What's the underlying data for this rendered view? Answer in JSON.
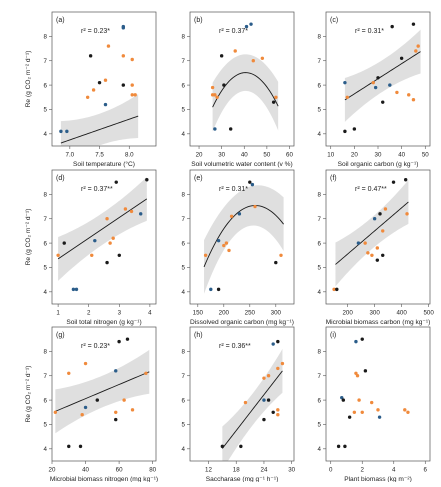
{
  "figure": {
    "colors": {
      "blue": "#2b5d8a",
      "orange": "#f08a3c",
      "black": "#1a1a1a",
      "band": "#d9d9d9"
    }
  },
  "chart_data": [
    {
      "id": "a",
      "panel_label": "(a)",
      "type": "scatter",
      "r2_label": "r² = 0.23*",
      "xlabel": "Soil temperature (°C)",
      "ylabel": "Re (g CO₂ m⁻² d⁻¹)",
      "xlim": [
        6.7,
        8.45
      ],
      "ylim": [
        3.5,
        9.0
      ],
      "xticks": [
        7.0,
        7.5,
        8.0
      ],
      "xticklabels": [
        "7.0",
        "7.5",
        "8.0"
      ],
      "yticks": [
        4,
        5,
        6,
        7,
        8
      ],
      "fit": {
        "kind": "linear",
        "x0": 6.85,
        "x1": 8.15,
        "coef": [
          -2.2,
          0.85
        ],
        "ci": [
          0.9,
          0.4,
          0.9
        ]
      },
      "points": [
        {
          "x": 7.3,
          "y": 5.5,
          "g": "orange"
        },
        {
          "x": 7.4,
          "y": 5.8,
          "g": "orange"
        },
        {
          "x": 7.6,
          "y": 6.2,
          "g": "orange"
        },
        {
          "x": 7.9,
          "y": 7.2,
          "g": "orange"
        },
        {
          "x": 8.05,
          "y": 7.05,
          "g": "orange"
        },
        {
          "x": 8.05,
          "y": 5.6,
          "g": "orange"
        },
        {
          "x": 8.1,
          "y": 5.6,
          "g": "orange"
        },
        {
          "x": 7.65,
          "y": 7.6,
          "g": "orange"
        },
        {
          "x": 8.05,
          "y": 6.0,
          "g": "orange"
        },
        {
          "x": 6.85,
          "y": 4.1,
          "g": "blue"
        },
        {
          "x": 6.95,
          "y": 4.1,
          "g": "blue"
        },
        {
          "x": 7.6,
          "y": 5.2,
          "g": "blue"
        },
        {
          "x": 7.9,
          "y": 8.35,
          "g": "blue"
        },
        {
          "x": 7.9,
          "y": 8.4,
          "g": "blue"
        },
        {
          "x": 7.35,
          "y": 7.2,
          "g": "black"
        },
        {
          "x": 7.5,
          "y": 6.1,
          "g": "black"
        },
        {
          "x": 7.9,
          "y": 6.0,
          "g": "black"
        }
      ]
    },
    {
      "id": "b",
      "panel_label": "(b)",
      "type": "scatter",
      "r2_label": "r² = 0.37*",
      "xlabel": "Soil volumetric water content  (v %)",
      "ylabel": "",
      "xlim": [
        16,
        62
      ],
      "ylim": [
        3.5,
        9.0
      ],
      "xticks": [
        20,
        30,
        40,
        50,
        60
      ],
      "xticklabels": [
        "20",
        "30",
        "40",
        "50",
        "60"
      ],
      "yticks": [
        4,
        5,
        6,
        7,
        8
      ],
      "fit": {
        "kind": "quadratic",
        "x0": 26,
        "x1": 55,
        "coef": [
          -4.45,
          0.54,
          -0.00665
        ],
        "ci": [
          1.0,
          0.5,
          1.0
        ]
      },
      "points": [
        {
          "x": 26,
          "y": 5.9,
          "g": "orange"
        },
        {
          "x": 26,
          "y": 5.6,
          "g": "orange"
        },
        {
          "x": 27,
          "y": 5.6,
          "g": "orange"
        },
        {
          "x": 28,
          "y": 5.5,
          "g": "orange"
        },
        {
          "x": 36,
          "y": 7.4,
          "g": "orange"
        },
        {
          "x": 44,
          "y": 7.0,
          "g": "orange"
        },
        {
          "x": 48,
          "y": 7.1,
          "g": "orange"
        },
        {
          "x": 54,
          "y": 5.5,
          "g": "orange"
        },
        {
          "x": 27,
          "y": 4.2,
          "g": "blue"
        },
        {
          "x": 41,
          "y": 8.4,
          "g": "blue"
        },
        {
          "x": 43,
          "y": 8.5,
          "g": "blue"
        },
        {
          "x": 30,
          "y": 7.2,
          "g": "black"
        },
        {
          "x": 31,
          "y": 6.0,
          "g": "black"
        },
        {
          "x": 34,
          "y": 4.2,
          "g": "black"
        },
        {
          "x": 53,
          "y": 5.3,
          "g": "black"
        }
      ]
    },
    {
      "id": "c",
      "panel_label": "(c)",
      "type": "scatter",
      "r2_label": "r² = 0.31*",
      "xlabel": "Soil organic carbon (g kg⁻¹)",
      "ylabel": "",
      "xlim": [
        8,
        52
      ],
      "ylim": [
        3.5,
        9.0
      ],
      "xticks": [
        10,
        20,
        30,
        40,
        50
      ],
      "xticklabels": [
        "10",
        "20",
        "30",
        "40",
        "50"
      ],
      "yticks": [
        4,
        5,
        6,
        7,
        8
      ],
      "fit": {
        "kind": "linear",
        "x0": 16,
        "x1": 48,
        "coef": [
          4.4,
          0.062
        ],
        "ci": [
          0.9,
          0.4,
          0.9
        ]
      },
      "points": [
        {
          "x": 17,
          "y": 5.5,
          "g": "orange"
        },
        {
          "x": 28,
          "y": 6.1,
          "g": "orange"
        },
        {
          "x": 38,
          "y": 5.7,
          "g": "orange"
        },
        {
          "x": 43,
          "y": 5.6,
          "g": "orange"
        },
        {
          "x": 45,
          "y": 5.4,
          "g": "orange"
        },
        {
          "x": 46,
          "y": 7.4,
          "g": "orange"
        },
        {
          "x": 47,
          "y": 7.6,
          "g": "orange"
        },
        {
          "x": 16,
          "y": 6.1,
          "g": "blue"
        },
        {
          "x": 29,
          "y": 5.9,
          "g": "blue"
        },
        {
          "x": 35,
          "y": 6.0,
          "g": "blue"
        },
        {
          "x": 16,
          "y": 4.1,
          "g": "black"
        },
        {
          "x": 20,
          "y": 4.2,
          "g": "black"
        },
        {
          "x": 30,
          "y": 6.3,
          "g": "black"
        },
        {
          "x": 32,
          "y": 5.3,
          "g": "black"
        },
        {
          "x": 36,
          "y": 8.4,
          "g": "black"
        },
        {
          "x": 40,
          "y": 7.1,
          "g": "black"
        },
        {
          "x": 45,
          "y": 8.5,
          "g": "black"
        }
      ]
    },
    {
      "id": "d",
      "panel_label": "(d)",
      "type": "scatter",
      "r2_label": "r² = 0.37**",
      "xlabel": "Soil total nitrogen  (g kg⁻¹)",
      "ylabel": "Re (g CO₂ m⁻² d⁻¹)",
      "xlim": [
        0.8,
        4.2
      ],
      "ylim": [
        3.5,
        9.0
      ],
      "xticks": [
        1,
        2,
        3,
        4
      ],
      "xticklabels": [
        "1",
        "2",
        "3",
        "4"
      ],
      "yticks": [
        4,
        5,
        6,
        7,
        8
      ],
      "fit": {
        "kind": "linear",
        "x0": 1.0,
        "x1": 3.9,
        "coef": [
          4.5,
          0.85
        ],
        "ci": [
          0.9,
          0.4,
          0.9
        ]
      },
      "points": [
        {
          "x": 1.0,
          "y": 5.5,
          "g": "orange"
        },
        {
          "x": 2.1,
          "y": 5.5,
          "g": "orange"
        },
        {
          "x": 2.6,
          "y": 7.0,
          "g": "orange"
        },
        {
          "x": 2.7,
          "y": 6.0,
          "g": "orange"
        },
        {
          "x": 2.8,
          "y": 6.2,
          "g": "orange"
        },
        {
          "x": 3.2,
          "y": 7.4,
          "g": "orange"
        },
        {
          "x": 3.4,
          "y": 7.3,
          "g": "orange"
        },
        {
          "x": 1.5,
          "y": 4.1,
          "g": "blue"
        },
        {
          "x": 1.6,
          "y": 4.1,
          "g": "blue"
        },
        {
          "x": 2.2,
          "y": 6.1,
          "g": "blue"
        },
        {
          "x": 3.7,
          "y": 7.2,
          "g": "blue"
        },
        {
          "x": 1.2,
          "y": 6.0,
          "g": "black"
        },
        {
          "x": 2.6,
          "y": 5.2,
          "g": "black"
        },
        {
          "x": 2.9,
          "y": 8.5,
          "g": "black"
        },
        {
          "x": 3.0,
          "y": 5.5,
          "g": "black"
        },
        {
          "x": 3.9,
          "y": 8.6,
          "g": "black"
        }
      ]
    },
    {
      "id": "e",
      "panel_label": "(e)",
      "type": "scatter",
      "r2_label": "r² = 0.31*",
      "xlabel": "Dissolved organic carbon  (mg kg⁻¹)",
      "ylabel": "",
      "xlim": [
        135,
        335
      ],
      "ylim": [
        3.5,
        9.0
      ],
      "xticks": [
        150,
        200,
        250,
        300
      ],
      "xticklabels": [
        "150",
        "200",
        "250",
        "300"
      ],
      "yticks": [
        4,
        5,
        6,
        7,
        8
      ],
      "fit": {
        "kind": "quadratic",
        "x0": 162,
        "x1": 315,
        "coef": [
          -10.05,
          0.135,
          -0.000259
        ],
        "ci": [
          1.1,
          0.5,
          1.1
        ]
      },
      "points": [
        {
          "x": 165,
          "y": 5.5,
          "g": "orange"
        },
        {
          "x": 200,
          "y": 5.9,
          "g": "orange"
        },
        {
          "x": 205,
          "y": 6.0,
          "g": "orange"
        },
        {
          "x": 210,
          "y": 5.7,
          "g": "orange"
        },
        {
          "x": 215,
          "y": 7.1,
          "g": "orange"
        },
        {
          "x": 260,
          "y": 7.5,
          "g": "orange"
        },
        {
          "x": 310,
          "y": 5.5,
          "g": "orange"
        },
        {
          "x": 175,
          "y": 4.1,
          "g": "blue"
        },
        {
          "x": 190,
          "y": 6.1,
          "g": "blue"
        },
        {
          "x": 230,
          "y": 7.2,
          "g": "blue"
        },
        {
          "x": 255,
          "y": 8.4,
          "g": "blue"
        },
        {
          "x": 190,
          "y": 4.1,
          "g": "black"
        },
        {
          "x": 250,
          "y": 8.5,
          "g": "black"
        },
        {
          "x": 300,
          "y": 5.2,
          "g": "black"
        }
      ]
    },
    {
      "id": "f",
      "panel_label": "(f)",
      "type": "scatter",
      "r2_label": "r² = 0.47**",
      "xlabel": "Microbial biomass carbon  (mg kg⁻¹)",
      "ylabel": "",
      "xlim": [
        120,
        505
      ],
      "ylim": [
        3.5,
        9.0
      ],
      "xticks": [
        200,
        300,
        400,
        500
      ],
      "xticklabels": [
        "200",
        "300",
        "400",
        "500"
      ],
      "yticks": [
        4,
        5,
        6,
        7,
        8
      ],
      "fit": {
        "kind": "linear",
        "x0": 155,
        "x1": 425,
        "coef": [
          3.65,
          0.0095
        ],
        "ci": [
          0.9,
          0.4,
          0.9
        ]
      },
      "points": [
        {
          "x": 150,
          "y": 4.1,
          "g": "orange"
        },
        {
          "x": 265,
          "y": 6.0,
          "g": "orange"
        },
        {
          "x": 275,
          "y": 5.6,
          "g": "orange"
        },
        {
          "x": 290,
          "y": 5.5,
          "g": "orange"
        },
        {
          "x": 310,
          "y": 5.8,
          "g": "orange"
        },
        {
          "x": 330,
          "y": 6.5,
          "g": "orange"
        },
        {
          "x": 340,
          "y": 7.4,
          "g": "orange"
        },
        {
          "x": 420,
          "y": 7.2,
          "g": "orange"
        },
        {
          "x": 240,
          "y": 6.0,
          "g": "blue"
        },
        {
          "x": 300,
          "y": 7.0,
          "g": "blue"
        },
        {
          "x": 160,
          "y": 4.1,
          "g": "black"
        },
        {
          "x": 310,
          "y": 5.3,
          "g": "black"
        },
        {
          "x": 320,
          "y": 7.2,
          "g": "black"
        },
        {
          "x": 330,
          "y": 5.5,
          "g": "black"
        },
        {
          "x": 370,
          "y": 8.5,
          "g": "black"
        },
        {
          "x": 415,
          "y": 8.6,
          "g": "black"
        }
      ]
    },
    {
      "id": "g",
      "panel_label": "(g)",
      "type": "scatter",
      "r2_label": "r² = 0.23*",
      "xlabel": "Microbial biomass nitrogen  (mg kg⁻¹)",
      "ylabel": "Re (g CO₂ m⁻² d⁻¹)",
      "xlim": [
        20,
        82
      ],
      "ylim": [
        3.5,
        9.0
      ],
      "xticks": [
        20,
        40,
        60,
        80
      ],
      "xticklabels": [
        "20",
        "40",
        "60",
        "80"
      ],
      "yticks": [
        4,
        5,
        6,
        7,
        8
      ],
      "fit": {
        "kind": "linear",
        "x0": 22,
        "x1": 78,
        "coef": [
          4.9,
          0.029
        ],
        "ci": [
          0.9,
          0.4,
          0.9
        ]
      },
      "points": [
        {
          "x": 22,
          "y": 5.5,
          "g": "orange"
        },
        {
          "x": 30,
          "y": 7.1,
          "g": "orange"
        },
        {
          "x": 38,
          "y": 5.4,
          "g": "orange"
        },
        {
          "x": 40,
          "y": 7.5,
          "g": "orange"
        },
        {
          "x": 58,
          "y": 5.5,
          "g": "orange"
        },
        {
          "x": 63,
          "y": 6.0,
          "g": "orange"
        },
        {
          "x": 68,
          "y": 5.6,
          "g": "orange"
        },
        {
          "x": 76,
          "y": 7.1,
          "g": "orange"
        },
        {
          "x": 40,
          "y": 5.7,
          "g": "blue"
        },
        {
          "x": 58,
          "y": 7.2,
          "g": "blue"
        },
        {
          "x": 30,
          "y": 4.1,
          "g": "black"
        },
        {
          "x": 37,
          "y": 4.1,
          "g": "black"
        },
        {
          "x": 47,
          "y": 6.0,
          "g": "black"
        },
        {
          "x": 58,
          "y": 5.2,
          "g": "black"
        },
        {
          "x": 60,
          "y": 8.4,
          "g": "black"
        },
        {
          "x": 65,
          "y": 8.5,
          "g": "black"
        }
      ]
    },
    {
      "id": "h",
      "panel_label": "(h)",
      "type": "scatter",
      "r2_label": "r² = 0.36**",
      "xlabel": "Saccharase  (mg g⁻¹ h⁻¹)",
      "ylabel": "",
      "xlim": [
        8,
        30.5
      ],
      "ylim": [
        3.5,
        9.0
      ],
      "xticks": [
        12,
        18,
        24,
        30
      ],
      "xticklabels": [
        "12",
        "18",
        "24",
        "30"
      ],
      "yticks": [
        4,
        5,
        6,
        7,
        8
      ],
      "fit": {
        "kind": "linear",
        "x0": 15,
        "x1": 28,
        "coef": [
          0.34,
          0.245
        ],
        "ci": [
          0.9,
          0.4,
          0.9
        ]
      },
      "points": [
        {
          "x": 20,
          "y": 5.9,
          "g": "orange"
        },
        {
          "x": 24,
          "y": 6.9,
          "g": "orange"
        },
        {
          "x": 25,
          "y": 7.0,
          "g": "orange"
        },
        {
          "x": 27,
          "y": 5.6,
          "g": "orange"
        },
        {
          "x": 27,
          "y": 5.4,
          "g": "orange"
        },
        {
          "x": 27,
          "y": 7.3,
          "g": "orange"
        },
        {
          "x": 28,
          "y": 7.5,
          "g": "orange"
        },
        {
          "x": 24,
          "y": 6.0,
          "g": "blue"
        },
        {
          "x": 26,
          "y": 8.3,
          "g": "blue"
        },
        {
          "x": 15,
          "y": 4.1,
          "g": "black"
        },
        {
          "x": 19,
          "y": 4.1,
          "g": "black"
        },
        {
          "x": 24,
          "y": 5.2,
          "g": "black"
        },
        {
          "x": 25,
          "y": 6.0,
          "g": "black"
        },
        {
          "x": 26,
          "y": 5.5,
          "g": "black"
        },
        {
          "x": 27,
          "y": 8.4,
          "g": "black"
        }
      ]
    },
    {
      "id": "i",
      "panel_label": "(i)",
      "type": "scatter",
      "r2_label": "",
      "xlabel": "Plant biomass (kg m⁻²)",
      "ylabel": "",
      "xlim": [
        -0.3,
        6.3
      ],
      "ylim": [
        3.5,
        9.0
      ],
      "xticks": [
        0,
        2,
        4,
        6
      ],
      "xticklabels": [
        "0",
        "2",
        "4",
        "6"
      ],
      "yticks": [
        4,
        5,
        6,
        7,
        8
      ],
      "fit": null,
      "points": [
        {
          "x": 1.5,
          "y": 5.5,
          "g": "orange"
        },
        {
          "x": 1.6,
          "y": 7.1,
          "g": "orange"
        },
        {
          "x": 1.7,
          "y": 7.0,
          "g": "orange"
        },
        {
          "x": 1.8,
          "y": 6.0,
          "g": "orange"
        },
        {
          "x": 2.0,
          "y": 5.5,
          "g": "orange"
        },
        {
          "x": 2.6,
          "y": 5.9,
          "g": "orange"
        },
        {
          "x": 3.0,
          "y": 5.6,
          "g": "orange"
        },
        {
          "x": 4.7,
          "y": 5.6,
          "g": "orange"
        },
        {
          "x": 4.9,
          "y": 5.5,
          "g": "orange"
        },
        {
          "x": 0.7,
          "y": 6.1,
          "g": "blue"
        },
        {
          "x": 1.6,
          "y": 8.4,
          "g": "blue"
        },
        {
          "x": 3.1,
          "y": 5.3,
          "g": "blue"
        },
        {
          "x": 0.5,
          "y": 4.1,
          "g": "black"
        },
        {
          "x": 0.9,
          "y": 4.1,
          "g": "black"
        },
        {
          "x": 0.8,
          "y": 6.0,
          "g": "black"
        },
        {
          "x": 1.2,
          "y": 5.3,
          "g": "black"
        },
        {
          "x": 2.0,
          "y": 8.5,
          "g": "black"
        },
        {
          "x": 2.2,
          "y": 7.2,
          "g": "black"
        }
      ]
    }
  ]
}
